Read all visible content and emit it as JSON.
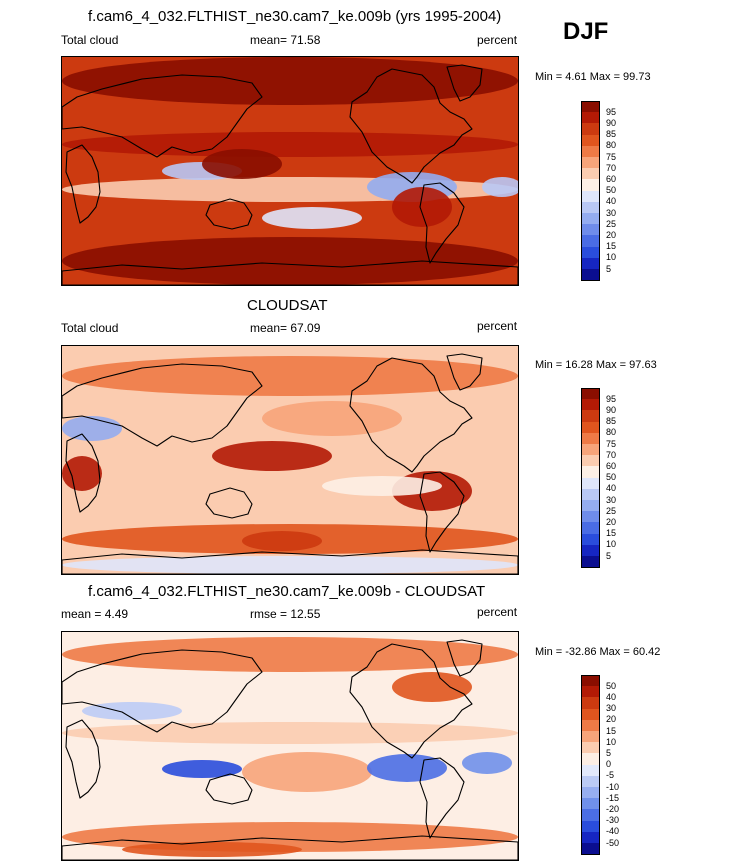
{
  "season": "DJF",
  "panels": [
    {
      "id": "model",
      "title": "f.cam6_4_032.FLTHIST_ne30.cam7_ke.009b (yrs 1995-2004)",
      "left_label": "Total cloud",
      "center_label": "mean=  71.58",
      "right_label": "percent",
      "minmax": "Min =   4.61 Max =  99.73",
      "colorbar": {
        "labels": [
          "95",
          "90",
          "85",
          "80",
          "75",
          "70",
          "60",
          "50",
          "40",
          "30",
          "25",
          "20",
          "15",
          "10",
          "5"
        ],
        "colors": [
          "#8a0e00",
          "#b31a05",
          "#cc3a10",
          "#e0551e",
          "#ee7a46",
          "#f7a47a",
          "#fbccb0",
          "#fdf0e6",
          "#dfe6fb",
          "#b9c8f5",
          "#94acf0",
          "#6f8cea",
          "#4a6ce4",
          "#2a4ddc",
          "#1626c2",
          "#0b0e90"
        ]
      },
      "map_style": "model"
    },
    {
      "id": "obs",
      "title": "CLOUDSAT",
      "left_label": "Total cloud",
      "center_label": "mean=  67.09",
      "right_label": "percent",
      "minmax": "Min =  16.28 Max =  97.63",
      "colorbar": {
        "labels": [
          "95",
          "90",
          "85",
          "80",
          "75",
          "70",
          "60",
          "50",
          "40",
          "30",
          "25",
          "20",
          "15",
          "10",
          "5"
        ],
        "colors": [
          "#8a0e00",
          "#b31a05",
          "#cc3a10",
          "#e0551e",
          "#ee7a46",
          "#f7a47a",
          "#fbccb0",
          "#fdf0e6",
          "#dfe6fb",
          "#b9c8f5",
          "#94acf0",
          "#6f8cea",
          "#4a6ce4",
          "#2a4ddc",
          "#1626c2",
          "#0b0e90"
        ]
      },
      "map_style": "obs"
    },
    {
      "id": "diff",
      "title": "f.cam6_4_032.FLTHIST_ne30.cam7_ke.009b - CLOUDSAT",
      "left_label": "mean =   4.49",
      "center_label": "rmse =  12.55",
      "right_label": "percent",
      "minmax": "Min = -32.86 Max =  60.42",
      "colorbar": {
        "labels": [
          "50",
          "40",
          "30",
          "20",
          "15",
          "10",
          "5",
          "0",
          "-5",
          "-10",
          "-15",
          "-20",
          "-30",
          "-40",
          "-50"
        ],
        "colors": [
          "#8a0e00",
          "#b31a05",
          "#cc3a10",
          "#e0551e",
          "#ee7a46",
          "#f7a47a",
          "#fbccb0",
          "#fdeee4",
          "#e3e9fb",
          "#bccbf5",
          "#97aef0",
          "#7090ea",
          "#4b6ee4",
          "#2a4ddc",
          "#1626c2",
          "#0b0e90"
        ]
      },
      "map_style": "diff"
    }
  ]
}
